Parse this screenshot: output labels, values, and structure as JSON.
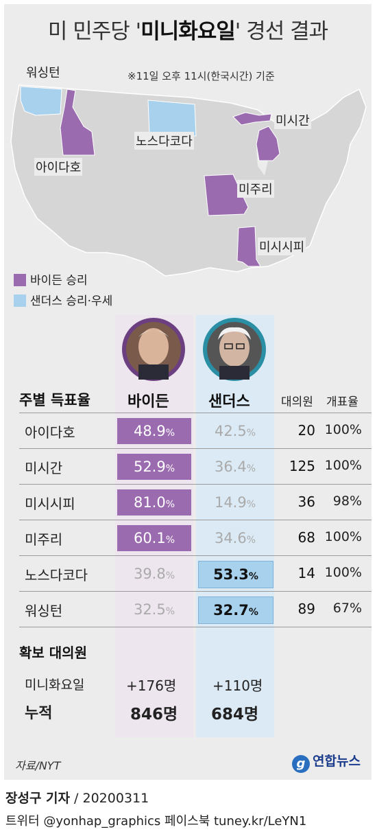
{
  "title_prefix": "미 민주당 '",
  "title_bold": "미니화요일",
  "title_suffix": "' 경선 결과",
  "note": "※11일 오후 11시(한국시간) 기준",
  "map_labels": {
    "washington": "워싱턴",
    "north_dakota": "노스다코다",
    "michigan": "미시간",
    "idaho": "아이다호",
    "missouri": "미주리",
    "mississippi": "미시시피"
  },
  "legend": {
    "biden": "바이든 승리",
    "sanders": "샌더스 승리·우세"
  },
  "colors": {
    "biden": "#9b6bb0",
    "sanders": "#a8d1ee",
    "biden_col": "#eee6ef",
    "sanders_col": "#dbeaf4"
  },
  "table": {
    "header_state": "주별 득표율",
    "header_biden": "바이든",
    "header_sanders": "샌더스",
    "header_delegates": "대의원",
    "header_counted": "개표율"
  },
  "chart_data": {
    "type": "table",
    "columns": [
      "주별 득표율",
      "바이든",
      "샌더스",
      "대의원",
      "개표율"
    ],
    "rows": [
      {
        "state": "아이다호",
        "biden": "48.9",
        "sanders": "42.5",
        "delegates": "20",
        "counted": "100%",
        "winner": "biden"
      },
      {
        "state": "미시간",
        "biden": "52.9",
        "sanders": "36.4",
        "delegates": "125",
        "counted": "100%",
        "winner": "biden"
      },
      {
        "state": "미시시피",
        "biden": "81.0",
        "sanders": "14.9",
        "delegates": "36",
        "counted": "98%",
        "winner": "biden"
      },
      {
        "state": "미주리",
        "biden": "60.1",
        "sanders": "34.6",
        "delegates": "68",
        "counted": "100%",
        "winner": "biden"
      },
      {
        "state": "노스다코다",
        "biden": "39.8",
        "sanders": "53.3",
        "delegates": "14",
        "counted": "100%",
        "winner": "sanders"
      },
      {
        "state": "워싱턴",
        "biden": "32.5",
        "sanders": "32.7",
        "delegates": "89",
        "counted": "67%",
        "winner": "sanders"
      }
    ],
    "unit": "%"
  },
  "delegates": {
    "title": "확보 대의원",
    "mini_label": "미니화요일",
    "mini_biden": "+176명",
    "mini_sanders": "+110명",
    "total_label": "누적",
    "total_biden": "846명",
    "total_sanders": "684명"
  },
  "source": "자료/NYT",
  "logo": "연합뉴스",
  "logo_mark": "g",
  "credit_name": "장성구 기자",
  "credit_date": " / 20200311",
  "social": "트위터 @yonhap_graphics  페이스북 tuney.kr/LeYN1"
}
